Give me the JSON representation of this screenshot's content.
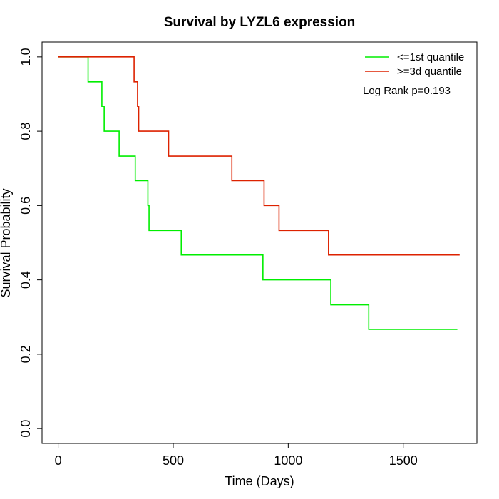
{
  "chart_data": {
    "type": "line",
    "title": "Survival by LYZL6 expression",
    "xlabel": "Time (Days)",
    "ylabel": "Survival Probability",
    "xlim": [
      0,
      1750
    ],
    "ylim": [
      0,
      1
    ],
    "x_ticks": [
      0,
      500,
      1000,
      1500
    ],
    "x_tick_labels": [
      "0",
      "500",
      "1000",
      "1500"
    ],
    "y_ticks": [
      0,
      0.2,
      0.4,
      0.6,
      0.8,
      1.0
    ],
    "y_tick_labels": [
      "0.0",
      "0.2",
      "0.4",
      "0.6",
      "0.8",
      "1.0"
    ],
    "grid": false,
    "legend_position": "top-right",
    "annotation": "Log Rank p=0.193",
    "series": [
      {
        "name": "<=1st quantile",
        "color": "#00ee00",
        "points": [
          [
            0,
            1.0
          ],
          [
            130,
            0.933
          ],
          [
            190,
            0.867
          ],
          [
            200,
            0.8
          ],
          [
            265,
            0.733
          ],
          [
            335,
            0.667
          ],
          [
            390,
            0.6
          ],
          [
            395,
            0.533
          ],
          [
            535,
            0.467
          ],
          [
            890,
            0.4
          ],
          [
            1185,
            0.333
          ],
          [
            1350,
            0.267
          ],
          [
            1735,
            0.267
          ]
        ]
      },
      {
        "name": ">=3d quantile",
        "color": "#dd2200",
        "points": [
          [
            0,
            1.0
          ],
          [
            330,
            0.933
          ],
          [
            345,
            0.867
          ],
          [
            350,
            0.8
          ],
          [
            480,
            0.733
          ],
          [
            755,
            0.667
          ],
          [
            895,
            0.6
          ],
          [
            960,
            0.533
          ],
          [
            1175,
            0.467
          ],
          [
            1745,
            0.467
          ]
        ]
      }
    ]
  }
}
